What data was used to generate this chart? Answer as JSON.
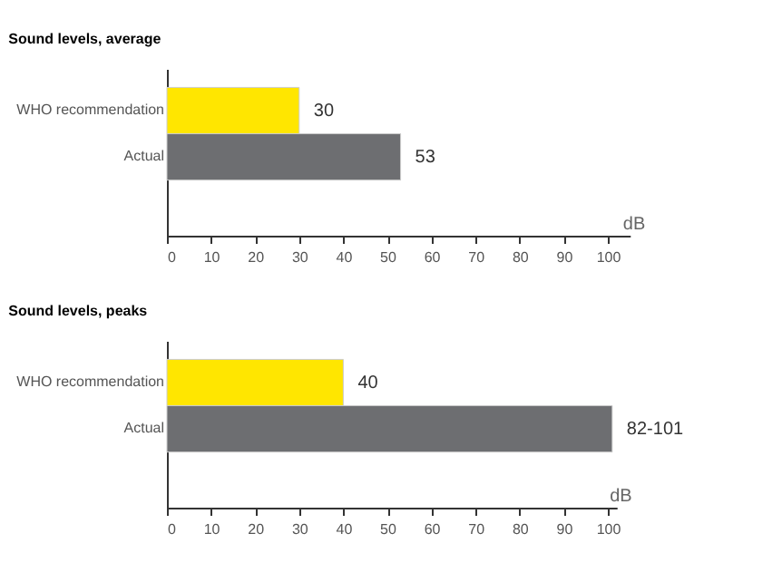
{
  "chart_data": [
    {
      "type": "bar",
      "orientation": "horizontal",
      "title": "Sound levels, average",
      "categories": [
        "WHO recommendation",
        "Actual"
      ],
      "values": [
        30,
        53
      ],
      "colors": [
        "#ffe600",
        "#6d6e71"
      ],
      "data_labels": true,
      "xlabel": "dB",
      "xlim": [
        0,
        105
      ],
      "xticks": [
        0,
        10,
        20,
        30,
        40,
        50,
        60,
        70,
        80,
        90,
        100
      ],
      "grid": false
    },
    {
      "type": "bar",
      "orientation": "horizontal",
      "title": "Sound levels, peaks",
      "categories": [
        "WHO recommendation",
        "Actual"
      ],
      "values": [
        40,
        101
      ],
      "colors": [
        "#ffe600",
        "#6d6e71"
      ],
      "value_labels": [
        "40",
        "82-101"
      ],
      "xlabel": "dB",
      "xlim": [
        0,
        102
      ],
      "xticks": [
        0,
        10,
        20,
        30,
        40,
        50,
        60,
        70,
        80,
        90,
        100
      ],
      "grid": false
    }
  ]
}
